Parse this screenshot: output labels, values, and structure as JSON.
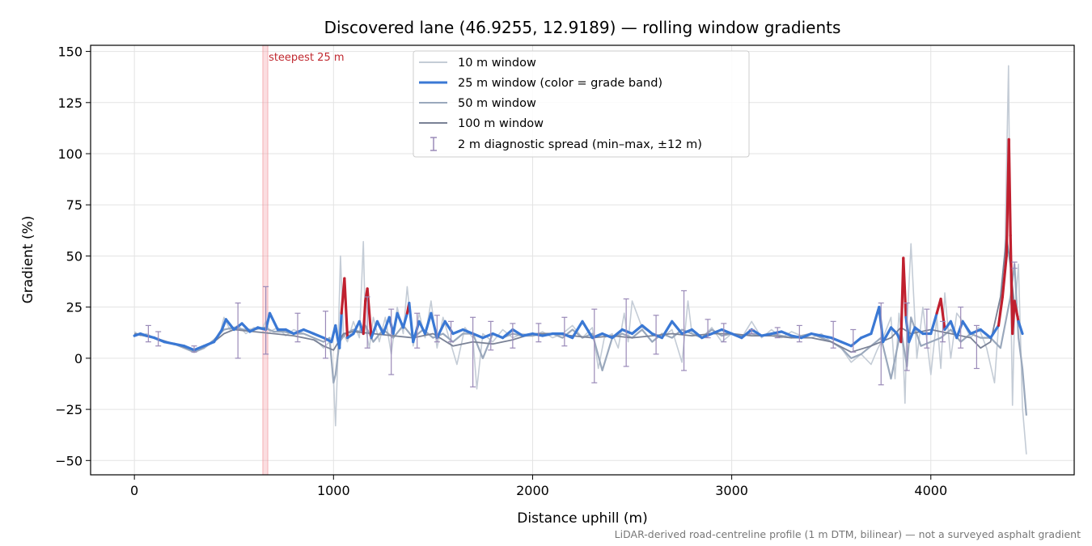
{
  "chart_data": {
    "type": "line",
    "title": "Discovered lane (46.9255, 12.9189) — rolling window gradients",
    "xlabel": "Distance uphill (m)",
    "ylabel": "Gradient (%)",
    "xlim": [
      -220,
      4720
    ],
    "ylim": [
      -57,
      153
    ],
    "xticks": [
      0,
      1000,
      2000,
      3000,
      4000
    ],
    "xtick_labels": [
      "0",
      "1000",
      "2000",
      "3000",
      "4000"
    ],
    "yticks": [
      -50,
      -25,
      0,
      25,
      50,
      75,
      100,
      125,
      150
    ],
    "ytick_labels": [
      "−50",
      "−25",
      "0",
      "25",
      "50",
      "75",
      "100",
      "125",
      "150"
    ],
    "grid": true,
    "legend_position": "upper-center",
    "annotation": {
      "text": "steepest 25 m",
      "x_start": 645,
      "x_end": 670,
      "color": "#c0282f"
    },
    "grade_band_colors": {
      "normal": "#3a78d4",
      "steep": "#e8900c",
      "extreme": "#c0202f"
    },
    "grade_band_thresholds": [
      20,
      25
    ],
    "series": [
      {
        "name": "10 m window",
        "color": "#c4ccd6",
        "x": [
          0,
          30,
          60,
          100,
          150,
          200,
          250,
          300,
          350,
          400,
          430,
          450,
          480,
          520,
          560,
          600,
          640,
          660,
          680,
          720,
          760,
          800,
          850,
          900,
          950,
          980,
          1000,
          1010,
          1020,
          1035,
          1050,
          1070,
          1100,
          1130,
          1150,
          1160,
          1180,
          1200,
          1230,
          1260,
          1290,
          1320,
          1350,
          1370,
          1400,
          1430,
          1460,
          1490,
          1520,
          1550,
          1580,
          1620,
          1660,
          1700,
          1720,
          1750,
          1800,
          1850,
          1900,
          1950,
          2000,
          2050,
          2100,
          2150,
          2200,
          2250,
          2300,
          2330,
          2360,
          2400,
          2430,
          2460,
          2480,
          2500,
          2550,
          2600,
          2650,
          2700,
          2750,
          2780,
          2800,
          2850,
          2900,
          2950,
          3000,
          3050,
          3100,
          3150,
          3200,
          3250,
          3300,
          3350,
          3400,
          3450,
          3500,
          3550,
          3600,
          3650,
          3700,
          3730,
          3760,
          3800,
          3820,
          3840,
          3860,
          3870,
          3880,
          3900,
          3930,
          3960,
          4000,
          4030,
          4050,
          4070,
          4100,
          4130,
          4160,
          4200,
          4240,
          4280,
          4320,
          4350,
          4370,
          4390,
          4400,
          4410,
          4420,
          4440,
          4460,
          4480
        ],
        "y": [
          13,
          11,
          12,
          10,
          8,
          7,
          6,
          3,
          5,
          8,
          12,
          20,
          14,
          16,
          12,
          15,
          14,
          18,
          13,
          15,
          11,
          14,
          12,
          10,
          5,
          8,
          -10,
          -33,
          -5,
          50,
          12,
          8,
          18,
          10,
          57,
          15,
          5,
          20,
          8,
          20,
          2,
          25,
          12,
          35,
          6,
          22,
          10,
          28,
          5,
          20,
          10,
          -3,
          15,
          10,
          -15,
          12,
          8,
          14,
          10,
          12,
          11,
          13,
          10,
          12,
          16,
          10,
          15,
          -5,
          10,
          12,
          5,
          22,
          8,
          28,
          15,
          12,
          10,
          14,
          -2,
          28,
          12,
          10,
          15,
          8,
          12,
          10,
          18,
          10,
          14,
          10,
          13,
          11,
          10,
          12,
          8,
          5,
          -2,
          2,
          -3,
          4,
          10,
          20,
          -10,
          22,
          5,
          -22,
          15,
          56,
          0,
          25,
          -8,
          20,
          -5,
          32,
          0,
          22,
          18,
          10,
          15,
          5,
          -12,
          30,
          42,
          143,
          40,
          -23,
          20,
          46,
          -24,
          -47
        ]
      },
      {
        "name": "25 m window (color = grade band)",
        "color": "#3a78d4",
        "x": [
          0,
          30,
          60,
          100,
          150,
          200,
          250,
          300,
          350,
          400,
          440,
          460,
          500,
          540,
          580,
          620,
          660,
          680,
          720,
          760,
          800,
          850,
          900,
          950,
          990,
          1010,
          1020,
          1030,
          1040,
          1055,
          1070,
          1100,
          1130,
          1150,
          1160,
          1170,
          1190,
          1220,
          1250,
          1280,
          1300,
          1320,
          1350,
          1370,
          1380,
          1400,
          1430,
          1460,
          1490,
          1520,
          1560,
          1600,
          1650,
          1700,
          1750,
          1800,
          1850,
          1900,
          1950,
          2000,
          2050,
          2100,
          2150,
          2200,
          2250,
          2300,
          2350,
          2400,
          2450,
          2500,
          2550,
          2600,
          2650,
          2700,
          2750,
          2800,
          2850,
          2900,
          2950,
          3000,
          3050,
          3100,
          3150,
          3200,
          3250,
          3300,
          3350,
          3400,
          3450,
          3500,
          3550,
          3600,
          3650,
          3700,
          3740,
          3760,
          3800,
          3830,
          3850,
          3862,
          3875,
          3890,
          3920,
          3960,
          4000,
          4030,
          4050,
          4070,
          4100,
          4130,
          4160,
          4200,
          4250,
          4300,
          4340,
          4360,
          4380,
          4392,
          4400,
          4410,
          4420,
          4440,
          4460
        ],
        "y": [
          11,
          12,
          11,
          10,
          8,
          7,
          6,
          4,
          6,
          8,
          14,
          19,
          14,
          17,
          13,
          15,
          14,
          22,
          14,
          14,
          12,
          14,
          12,
          10,
          8,
          16,
          10,
          5,
          22,
          39,
          10,
          12,
          18,
          12,
          28,
          34,
          10,
          18,
          12,
          20,
          12,
          22,
          15,
          22,
          27,
          8,
          18,
          12,
          22,
          10,
          18,
          12,
          14,
          12,
          10,
          12,
          10,
          14,
          11,
          12,
          11,
          12,
          12,
          10,
          18,
          10,
          12,
          10,
          14,
          12,
          16,
          12,
          10,
          18,
          12,
          14,
          10,
          12,
          14,
          12,
          10,
          14,
          11,
          12,
          13,
          11,
          10,
          12,
          11,
          10,
          8,
          6,
          10,
          12,
          25,
          8,
          15,
          12,
          8,
          49,
          20,
          8,
          15,
          12,
          12,
          22,
          29,
          14,
          18,
          10,
          18,
          12,
          14,
          10,
          16,
          30,
          50,
          107,
          60,
          12,
          28,
          18,
          12
        ]
      },
      {
        "name": "50 m window",
        "color": "#9aa8bc",
        "x": [
          0,
          50,
          100,
          150,
          200,
          250,
          300,
          350,
          400,
          450,
          500,
          550,
          600,
          650,
          700,
          750,
          800,
          850,
          900,
          950,
          980,
          1000,
          1010,
          1030,
          1060,
          1100,
          1130,
          1160,
          1200,
          1250,
          1300,
          1350,
          1400,
          1450,
          1500,
          1550,
          1600,
          1650,
          1700,
          1750,
          1800,
          1850,
          1900,
          1950,
          2000,
          2050,
          2100,
          2150,
          2200,
          2250,
          2300,
          2350,
          2400,
          2450,
          2500,
          2550,
          2600,
          2650,
          2700,
          2750,
          2800,
          2850,
          2900,
          2950,
          3000,
          3050,
          3100,
          3150,
          3200,
          3250,
          3300,
          3350,
          3400,
          3450,
          3500,
          3550,
          3600,
          3650,
          3700,
          3750,
          3800,
          3850,
          3880,
          3900,
          3950,
          4000,
          4050,
          4100,
          4150,
          4200,
          4250,
          4300,
          4350,
          4380,
          4400,
          4420,
          4440,
          4460,
          4480
        ],
        "y": [
          12,
          11,
          10,
          8,
          7,
          5,
          3,
          5,
          9,
          14,
          15,
          14,
          14,
          15,
          13,
          13,
          12,
          12,
          10,
          8,
          10,
          -12,
          -8,
          8,
          12,
          14,
          13,
          16,
          8,
          14,
          10,
          16,
          10,
          14,
          10,
          12,
          8,
          12,
          12,
          0,
          12,
          10,
          12,
          11,
          11,
          12,
          12,
          10,
          14,
          10,
          12,
          -6,
          10,
          12,
          10,
          14,
          8,
          12,
          10,
          14,
          12,
          10,
          14,
          11,
          12,
          11,
          12,
          11,
          12,
          11,
          10,
          11,
          12,
          10,
          8,
          5,
          0,
          2,
          6,
          10,
          -10,
          14,
          -4,
          20,
          6,
          8,
          10,
          14,
          8,
          12,
          10,
          10,
          5,
          20,
          30,
          46,
          10,
          -5,
          -28
        ]
      },
      {
        "name": "100 m window",
        "color": "#7a8296",
        "x": [
          0,
          100,
          200,
          300,
          400,
          450,
          500,
          600,
          700,
          800,
          900,
          950,
          1000,
          1050,
          1100,
          1200,
          1300,
          1400,
          1500,
          1600,
          1700,
          1800,
          1900,
          2000,
          2100,
          2200,
          2300,
          2400,
          2500,
          2600,
          2700,
          2800,
          2900,
          3000,
          3100,
          3200,
          3300,
          3400,
          3500,
          3600,
          3700,
          3800,
          3850,
          3900,
          4000,
          4100,
          4200,
          4250,
          4300,
          4350,
          4380,
          4400,
          4420,
          4440
        ],
        "y": [
          12,
          10,
          7,
          4,
          8,
          12,
          14,
          13,
          12,
          11,
          9,
          6,
          4,
          12,
          13,
          12,
          11,
          10,
          12,
          6,
          8,
          7,
          9,
          12,
          12,
          11,
          10,
          11,
          10,
          11,
          12,
          11,
          12,
          12,
          11,
          11,
          10,
          10,
          8,
          3,
          6,
          10,
          15,
          12,
          14,
          12,
          10,
          5,
          8,
          30,
          60,
          45,
          25,
          20
        ]
      }
    ],
    "error_bars": {
      "name": "2 m diagnostic spread (min–max, ±12 m)",
      "color": "#9a8ab8",
      "x": [
        70,
        120,
        300,
        520,
        660,
        820,
        960,
        1170,
        1290,
        1420,
        1520,
        1590,
        1700,
        1790,
        1900,
        2030,
        2160,
        2310,
        2470,
        2620,
        2760,
        2880,
        2960,
        3100,
        3230,
        3340,
        3510,
        3610,
        3750,
        3880,
        3980,
        4060,
        4150,
        4230,
        4420
      ],
      "ymin": [
        8,
        6,
        3,
        0,
        2,
        8,
        0,
        5,
        -8,
        5,
        8,
        8,
        -14,
        4,
        5,
        8,
        6,
        -12,
        -4,
        2,
        -6,
        10,
        8,
        12,
        10,
        8,
        5,
        3,
        -13,
        -6,
        5,
        8,
        5,
        -5,
        44
      ],
      "ymax": [
        16,
        13,
        6,
        27,
        35,
        22,
        23,
        30,
        24,
        22,
        21,
        18,
        20,
        18,
        17,
        17,
        20,
        24,
        29,
        21,
        33,
        19,
        17,
        14,
        15,
        16,
        18,
        14,
        27,
        27,
        24,
        18,
        25,
        16,
        47
      ]
    }
  },
  "footnote": "LiDAR-derived road-centreline profile (1 m DTM, bilinear) — not a surveyed asphalt gradient"
}
